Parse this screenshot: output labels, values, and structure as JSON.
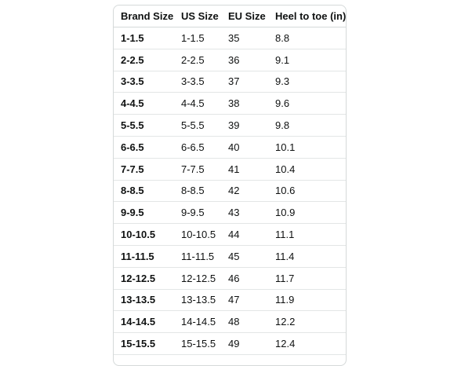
{
  "size_chart": {
    "headers": [
      "Brand Size",
      "US Size",
      "EU Size",
      "Heel to toe (in)"
    ],
    "rows": [
      [
        "1-1.5",
        "1-1.5",
        "35",
        "8.8"
      ],
      [
        "2-2.5",
        "2-2.5",
        "36",
        "9.1"
      ],
      [
        "3-3.5",
        "3-3.5",
        "37",
        "9.3"
      ],
      [
        "4-4.5",
        "4-4.5",
        "38",
        "9.6"
      ],
      [
        "5-5.5",
        "5-5.5",
        "39",
        "9.8"
      ],
      [
        "6-6.5",
        "6-6.5",
        "40",
        "10.1"
      ],
      [
        "7-7.5",
        "7-7.5",
        "41",
        "10.4"
      ],
      [
        "8-8.5",
        "8-8.5",
        "42",
        "10.6"
      ],
      [
        "9-9.5",
        "9-9.5",
        "43",
        "10.9"
      ],
      [
        "10-10.5",
        "10-10.5",
        "44",
        "11.1"
      ],
      [
        "11-11.5",
        "11-11.5",
        "45",
        "11.4"
      ],
      [
        "12-12.5",
        "12-12.5",
        "46",
        "11.7"
      ],
      [
        "13-13.5",
        "13-13.5",
        "47",
        "11.9"
      ],
      [
        "14-14.5",
        "14-14.5",
        "48",
        "12.2"
      ],
      [
        "15-15.5",
        "15-15.5",
        "49",
        "12.4"
      ]
    ]
  }
}
